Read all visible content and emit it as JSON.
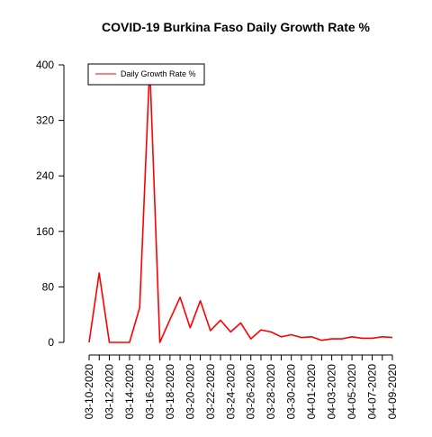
{
  "chart_data": {
    "type": "line",
    "title": "COVID-19 Burkina Faso Daily Growth Rate %",
    "xlabel": "",
    "ylabel": "",
    "ylim": [
      0,
      400
    ],
    "yticks": [
      0,
      80,
      160,
      240,
      320,
      400
    ],
    "grid": false,
    "legend_position": "top-left",
    "x": [
      "03-10-2020",
      "03-11-2020",
      "03-12-2020",
      "03-13-2020",
      "03-14-2020",
      "03-15-2020",
      "03-16-2020",
      "03-17-2020",
      "03-18-2020",
      "03-19-2020",
      "03-20-2020",
      "03-21-2020",
      "03-22-2020",
      "03-23-2020",
      "03-24-2020",
      "03-25-2020",
      "03-26-2020",
      "03-27-2020",
      "03-28-2020",
      "03-29-2020",
      "03-30-2020",
      "03-31-2020",
      "04-01-2020",
      "04-02-2020",
      "04-03-2020",
      "04-04-2020",
      "04-05-2020",
      "04-06-2020",
      "04-07-2020",
      "04-08-2020",
      "04-09-2020"
    ],
    "xtick_labels": [
      "03-10-2020",
      "03-12-2020",
      "03-14-2020",
      "03-16-2020",
      "03-18-2020",
      "03-20-2020",
      "03-22-2020",
      "03-24-2020",
      "03-26-2020",
      "03-28-2020",
      "03-30-2020",
      "04-01-2020",
      "04-03-2020",
      "04-05-2020",
      "04-07-2020",
      "04-09-2020"
    ],
    "series": [
      {
        "name": "Daily Growth Rate %",
        "color": "#ff0000",
        "values": [
          0,
          100,
          0,
          0,
          0,
          50,
          400,
          0,
          33,
          65,
          21,
          60,
          17,
          32,
          15,
          28,
          5,
          18,
          15,
          8,
          11,
          7,
          8,
          3,
          5,
          5,
          8,
          6,
          6,
          8,
          7
        ]
      }
    ]
  }
}
